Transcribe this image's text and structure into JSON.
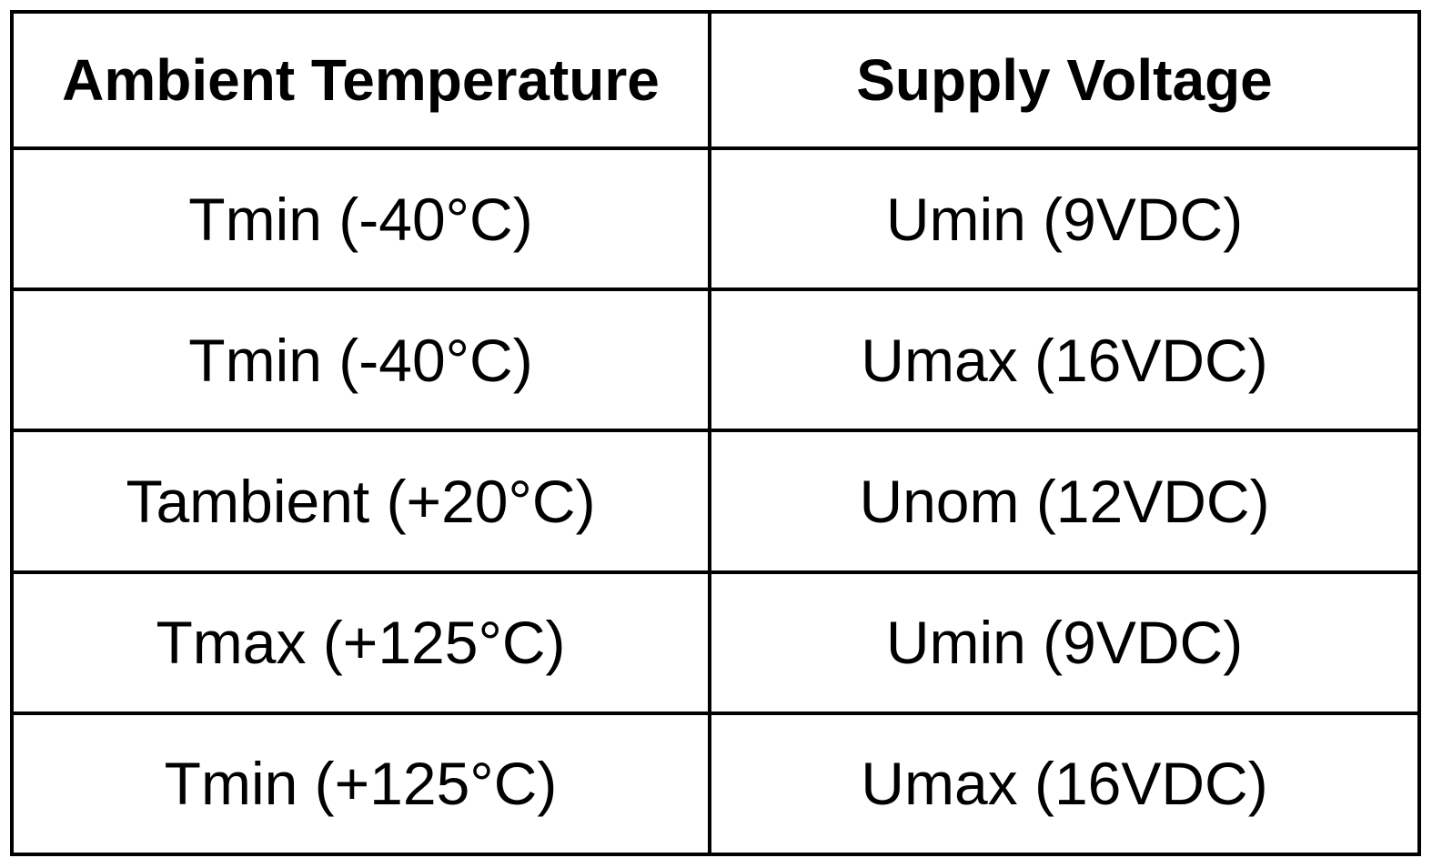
{
  "table": {
    "headers": [
      "Ambient Temperature",
      "Supply Voltage"
    ],
    "rows": [
      [
        "Tmin (-40°C)",
        "Umin (9VDC)"
      ],
      [
        "Tmin (-40°C)",
        "Umax (16VDC)"
      ],
      [
        "Tambient (+20°C)",
        "Unom (12VDC)"
      ],
      [
        "Tmax (+125°C)",
        "Umin (9VDC)"
      ],
      [
        "Tmin (+125°C)",
        "Umax (16VDC)"
      ]
    ]
  }
}
